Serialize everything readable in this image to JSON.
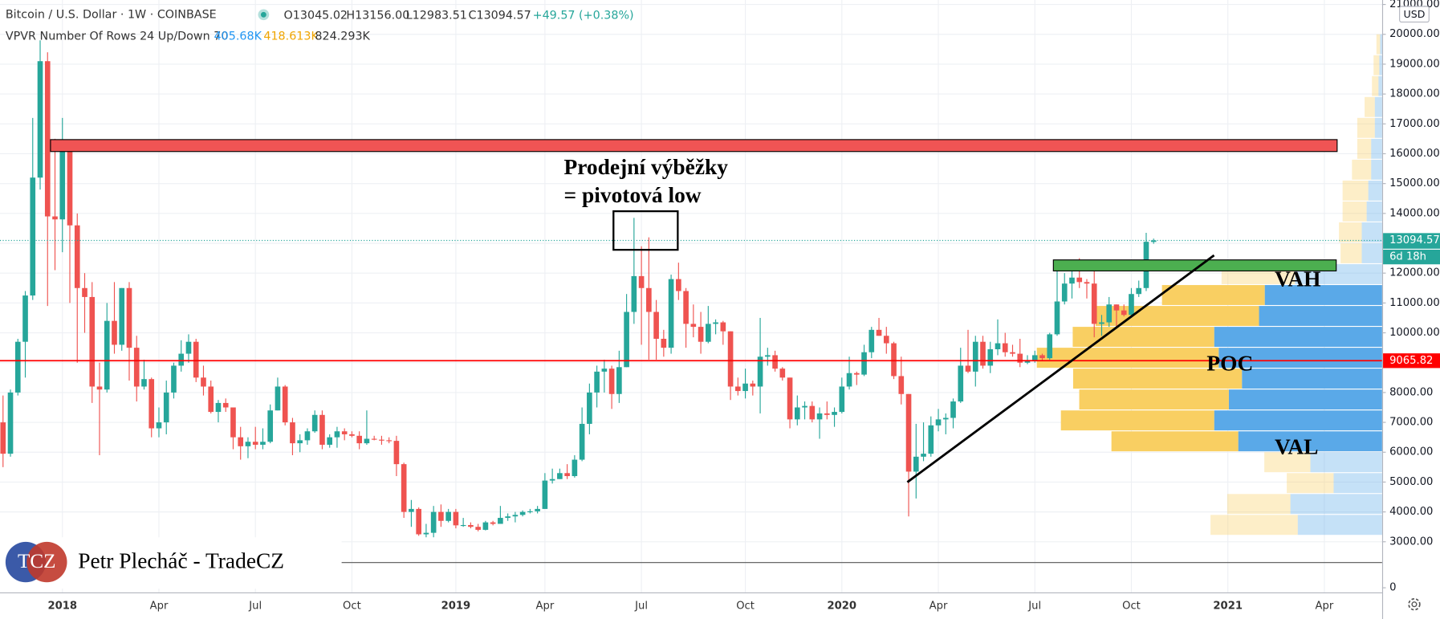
{
  "header": {
    "title": "Bitcoin / U.S. Dollar · 1W · COINBASE",
    "ohlc": [
      "O13045.02",
      "H13156.00",
      "L12983.51",
      "C13094.57"
    ],
    "change": "+49.57 (+0.38%)",
    "indicator": "VPVR Number Of Rows 24 Up/Down 70",
    "indicator_values": [
      "405.68K",
      "418.613K",
      "824.293K"
    ]
  },
  "chart_data": {
    "type": "candlestick",
    "categories": [
      null,
      null,
      null,
      null,
      null,
      null,
      null,
      null,
      "2018",
      null,
      null,
      null,
      null,
      null,
      null,
      null,
      null,
      null,
      null,
      null,
      null,
      "Apr",
      null,
      null,
      null,
      null,
      null,
      null,
      null,
      null,
      null,
      null,
      null,
      null,
      "Jul",
      null,
      null,
      null,
      null,
      null,
      null,
      null,
      null,
      null,
      null,
      null,
      null,
      "Oct",
      null,
      null,
      null,
      null,
      null,
      null,
      null,
      null,
      null,
      null,
      null,
      null,
      null,
      "2019",
      null,
      null,
      null,
      null,
      null,
      null,
      null,
      null,
      null,
      null,
      null,
      "Apr",
      null,
      null,
      null,
      null,
      null,
      null,
      null,
      null,
      null,
      null,
      null,
      null,
      "Jul",
      null,
      null,
      null,
      null,
      null,
      null,
      null,
      null,
      null,
      null,
      null,
      null,
      null,
      "Oct",
      null,
      null,
      null,
      null,
      null,
      null,
      null,
      null,
      null,
      null,
      null,
      null,
      "2020",
      null,
      null,
      null,
      null,
      null,
      null,
      null,
      null,
      null,
      null,
      null,
      null,
      "Apr",
      null,
      null,
      null,
      null,
      null,
      null,
      null,
      null,
      null,
      null,
      null,
      null,
      "Jul",
      null,
      null,
      null,
      null,
      null,
      null,
      null,
      null,
      null,
      null,
      null,
      null,
      "Oct",
      null,
      null,
      null,
      null,
      null,
      null,
      null,
      null,
      null,
      null,
      null,
      null,
      "2021",
      null,
      null,
      null,
      null,
      null,
      null,
      null,
      null,
      null,
      null,
      null,
      null,
      "Apr",
      null,
      null,
      null,
      null,
      null,
      null,
      null
    ],
    "open": [
      7000,
      5950,
      8000,
      9700,
      11250,
      15200,
      19100,
      13900,
      13800,
      16200,
      13600,
      11500,
      11200,
      8200,
      8100,
      10400,
      9600,
      11500,
      9500,
      8200,
      8450,
      6800,
      7000,
      8000,
      8900,
      9300,
      9700,
      8500,
      8200,
      7350,
      7650,
      7500,
      6500,
      6200,
      6350,
      6250,
      6350,
      7400,
      8200,
      7000,
      6300,
      6400,
      6700,
      7250,
      6250,
      6500,
      6700,
      6600,
      6550,
      6300,
      6450,
      6420,
      6400,
      6380,
      5600,
      4000,
      4100,
      3250,
      3300,
      4000,
      3700,
      4000,
      3550,
      3560,
      3500,
      3400,
      3650,
      3600,
      3800,
      3850,
      3900,
      4000,
      4020,
      4100,
      5050,
      5100,
      5300,
      5200,
      5750,
      6950,
      8000,
      8700,
      8800,
      7950,
      8850,
      10700,
      11900,
      11500,
      10700,
      9800,
      9500,
      11800,
      11400,
      10300,
      10200,
      9700,
      10300,
      10350,
      10050,
      8200,
      8050,
      8300,
      8200,
      9200,
      9250,
      8800,
      8500,
      7100,
      7500,
      7550,
      7100,
      7300,
      7250,
      7350,
      8200,
      8650,
      8600,
      9350,
      10100,
      9900,
      9650,
      8550,
      7950,
      5350,
      5850,
      5950,
      6900,
      7100,
      7150,
      7700,
      8900,
      8700,
      9700,
      8900,
      9450,
      9650,
      9350,
      9300,
      9000,
      9050,
      9250,
      9150,
      9950,
      11050,
      11650,
      11850,
      11700,
      11650,
      10300,
      10350,
      10950,
      10750,
      10600,
      11300,
      11500,
      13045.02,
      null,
      null,
      null,
      null,
      null,
      null,
      null,
      null,
      null,
      null,
      null,
      null,
      null,
      null,
      null,
      null,
      null,
      null,
      null,
      null,
      null,
      null,
      null,
      null,
      null,
      null,
      null,
      null,
      null,
      null
    ],
    "high": [
      7900,
      8100,
      9800,
      11400,
      17200,
      19800,
      19400,
      16500,
      17200,
      16300,
      14000,
      12000,
      11700,
      9000,
      11000,
      11700,
      11500,
      11700,
      9900,
      9100,
      8500,
      7500,
      8400,
      9000,
      9750,
      9950,
      9800,
      8900,
      8400,
      7750,
      7800,
      7500,
      6850,
      6500,
      6850,
      6800,
      7600,
      8500,
      8250,
      7150,
      6600,
      6800,
      7400,
      7400,
      6600,
      6850,
      6800,
      6700,
      6700,
      7400,
      6550,
      6550,
      6500,
      6550,
      5650,
      4400,
      4150,
      3600,
      4200,
      4250,
      4100,
      4100,
      3800,
      3650,
      3600,
      3700,
      3700,
      4200,
      3950,
      4000,
      4050,
      4100,
      4200,
      5300,
      5450,
      5450,
      5600,
      5900,
      7500,
      8300,
      8900,
      9100,
      8900,
      9400,
      11300,
      13850,
      12900,
      13200,
      11100,
      10100,
      11950,
      12350,
      11500,
      10950,
      10700,
      10900,
      10450,
      10400,
      10050,
      8500,
      8800,
      8400,
      10500,
      9500,
      9400,
      8850,
      8500,
      7900,
      7700,
      7700,
      7500,
      7700,
      7500,
      8500,
      9200,
      8700,
      9600,
      10200,
      10500,
      10200,
      9700,
      9200,
      7950,
      6950,
      7000,
      7200,
      7450,
      7300,
      7800,
      9500,
      10100,
      9900,
      9900,
      9700,
      10450,
      10000,
      9600,
      9800,
      9250,
      9400,
      9300,
      10000,
      12100,
      12000,
      12100,
      12500,
      11800,
      12100,
      10600,
      11200,
      10950,
      10950,
      11500,
      11750,
      13350,
      13156,
      null,
      null,
      null,
      null,
      null,
      null,
      null,
      null,
      null,
      null,
      null,
      null,
      null,
      null,
      null,
      null,
      null,
      null,
      null,
      null,
      null,
      null,
      null,
      null,
      null,
      null,
      null,
      null,
      null,
      null
    ],
    "low": [
      5500,
      5850,
      7900,
      8500,
      11100,
      14800,
      10900,
      12100,
      12700,
      11000,
      9000,
      10000,
      7650,
      5900,
      8000,
      9300,
      9400,
      8400,
      7700,
      8100,
      6500,
      6500,
      6600,
      7800,
      8700,
      9000,
      8350,
      7900,
      7300,
      7000,
      7350,
      6100,
      5750,
      5800,
      6100,
      6100,
      6300,
      7400,
      6900,
      5900,
      6000,
      6250,
      6650,
      6100,
      6150,
      6150,
      6400,
      6500,
      6100,
      6250,
      6400,
      6250,
      6300,
      5200,
      3800,
      3500,
      3200,
      3150,
      3150,
      3500,
      3650,
      3450,
      3500,
      3450,
      3350,
      3380,
      3550,
      3600,
      3700,
      3650,
      3850,
      3950,
      3950,
      4100,
      4950,
      5100,
      5100,
      5150,
      5700,
      6600,
      7500,
      8000,
      7450,
      7650,
      8850,
      10300,
      9600,
      9100,
      9100,
      9200,
      9300,
      11100,
      9500,
      9850,
      9300,
      9650,
      9950,
      9600,
      7750,
      7900,
      7800,
      7900,
      7300,
      8900,
      8700,
      8400,
      6800,
      6900,
      7100,
      7000,
      6450,
      7100,
      6850,
      7300,
      8100,
      8250,
      8550,
      9150,
      9900,
      9300,
      8450,
      7600,
      3850,
      4450,
      5700,
      5850,
      6700,
      6600,
      6800,
      7650,
      8650,
      8200,
      8800,
      8650,
      9250,
      9200,
      9200,
      8850,
      8950,
      9000,
      9050,
      9100,
      9900,
      10950,
      11150,
      11500,
      11150,
      9850,
      9900,
      10200,
      10150,
      10550,
      10500,
      11200,
      11400,
      12983.51,
      null,
      null,
      null,
      null,
      null,
      null,
      null,
      null,
      null,
      null,
      null,
      null,
      null,
      null,
      null,
      null,
      null,
      null,
      null,
      null,
      null,
      null,
      null,
      null,
      null,
      null,
      null,
      null,
      null,
      null
    ],
    "close": [
      5950,
      8000,
      9700,
      11250,
      15200,
      19100,
      13900,
      13800,
      16200,
      13600,
      11500,
      11200,
      8200,
      8100,
      10400,
      9600,
      11500,
      9500,
      8200,
      8450,
      6800,
      7000,
      8000,
      8900,
      9300,
      9700,
      8500,
      8200,
      7350,
      7650,
      7500,
      6500,
      6200,
      6350,
      6250,
      6350,
      7400,
      8200,
      7000,
      6300,
      6400,
      6700,
      7250,
      6250,
      6500,
      6700,
      6600,
      6550,
      6300,
      6450,
      6420,
      6400,
      6380,
      5600,
      4000,
      4100,
      3250,
      3300,
      4000,
      3700,
      4000,
      3550,
      3560,
      3500,
      3400,
      3650,
      3600,
      3800,
      3850,
      3900,
      4000,
      4020,
      4100,
      5050,
      5100,
      5300,
      5200,
      5750,
      6950,
      8000,
      8700,
      8800,
      7950,
      8850,
      10700,
      11900,
      11500,
      10700,
      9800,
      9500,
      11800,
      11400,
      10300,
      10200,
      9700,
      10300,
      10350,
      10050,
      8200,
      8050,
      8300,
      8200,
      9200,
      9250,
      8800,
      8500,
      7100,
      7500,
      7550,
      7100,
      7300,
      7250,
      7350,
      8200,
      8650,
      8600,
      9350,
      10100,
      9900,
      9650,
      8550,
      7950,
      5350,
      5850,
      5950,
      6900,
      7100,
      7150,
      7700,
      8900,
      8700,
      9700,
      8900,
      9450,
      9650,
      9350,
      9300,
      9000,
      9050,
      9250,
      9150,
      9950,
      11050,
      11650,
      11850,
      11700,
      11650,
      10300,
      10350,
      10950,
      10750,
      10600,
      11300,
      11500,
      13050,
      13094.57,
      null,
      null,
      null,
      null,
      null,
      null,
      null,
      null,
      null,
      null,
      null,
      null,
      null,
      null,
      null,
      null,
      null,
      null,
      null,
      null,
      null,
      null,
      null,
      null,
      null,
      null,
      null,
      null,
      null,
      null
    ],
    "up_color": "#26a69a",
    "down_color": "#ef5350",
    "ylim": [
      2320,
      21150
    ],
    "yticks": [
      {
        "value": 3000,
        "label": "3000.00"
      },
      {
        "value": 4000,
        "label": "4000.00"
      },
      {
        "value": 5000,
        "label": "5000.00"
      },
      {
        "value": 6000,
        "label": "6000.00"
      },
      {
        "value": 7000,
        "label": "7000.00"
      },
      {
        "value": 8000,
        "label": "8000.00"
      },
      {
        "value": 9000,
        "label": "9000.00"
      },
      {
        "value": 10000,
        "label": "10000.00"
      },
      {
        "value": 11000,
        "label": "11000.00"
      },
      {
        "value": 12000,
        "label": "12000.00"
      },
      {
        "value": 13000,
        "label": "13000.00"
      },
      {
        "value": 14000,
        "label": "14000.00"
      },
      {
        "value": 15000,
        "label": "15000.00"
      },
      {
        "value": 16000,
        "label": "16000.00"
      },
      {
        "value": 17000,
        "label": "17000.00"
      },
      {
        "value": 18000,
        "label": "18000.00"
      },
      {
        "value": 19000,
        "label": "19000.00"
      },
      {
        "value": 20000,
        "label": "20000.00"
      },
      {
        "value": 21000,
        "label": "21000.00"
      }
    ],
    "grid": true,
    "horizontal_line": {
      "value": 9065.82,
      "color": "#ff0000"
    },
    "pane_yticks": [
      0
    ],
    "volume_profile": {
      "bins": [
        3200,
        3900,
        4600,
        5300,
        6000,
        6700,
        7400,
        8100,
        8800,
        9500,
        10200,
        10900,
        11600,
        12300,
        13000,
        13700,
        14400,
        15100,
        15800,
        16500,
        17200,
        17900,
        18600,
        19300,
        20000
      ],
      "up": [
        20.7,
        22.5,
        11.9,
        17.6,
        35.3,
        41.2,
        37.6,
        34.4,
        40.1,
        41.2,
        30.2,
        28.8,
        21.4,
        5.0,
        5.0,
        3.8,
        3.4,
        2.7,
        2.7,
        1.8,
        1.8,
        0.9,
        0.7,
        0.5
      ],
      "down": [
        21.4,
        15.5,
        11.5,
        11.3,
        31.1,
        37.6,
        36.7,
        41.4,
        44.6,
        34.7,
        40.1,
        25.2,
        18.0,
        5.2,
        5.6,
        5.9,
        6.3,
        4.7,
        3.4,
        4.3,
        2.5,
        1.6,
        1.4,
        0.9
      ],
      "up_color": "#5aa9e8",
      "down_color": "#f9cf62",
      "value_area": [
        6000,
        11600
      ]
    }
  },
  "price_axis": {
    "currency": "USD",
    "countdown": "6d 18h"
  },
  "annotations": {
    "callout": [
      "Prodejní výběžky",
      "= pivotová low"
    ],
    "vah": "VAH",
    "poc": "POC",
    "val": "VAL"
  },
  "watermark": {
    "logo": "TCZ",
    "author": "Petr Plecháč - TradeCZ"
  }
}
